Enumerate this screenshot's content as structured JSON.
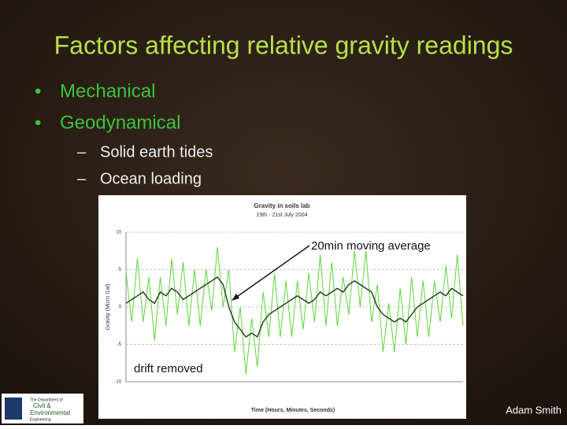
{
  "slide": {
    "title": "Factors affecting relative gravity readings",
    "bullets": [
      "Mechanical",
      "Geodynamical"
    ],
    "subbullets": [
      "Solid earth tides",
      "Ocean loading"
    ],
    "footer": "Adam Smith",
    "logo": [
      "The Department of",
      "Civil &",
      "Environmental",
      "Engineering"
    ]
  },
  "chart_data": {
    "type": "line",
    "title": "Gravity in soils lab",
    "subtitle": "19th - 21st July 2004",
    "y_label": "Gravity (Micro Gal)",
    "x_label": "Time (Hours, Minutes, Seconds)",
    "annotations": [
      "20min moving average",
      "drift removed"
    ],
    "ylim": [
      -10,
      10
    ],
    "yticks": [
      -10,
      -5,
      0,
      5,
      10
    ],
    "grid": true,
    "series": [
      {
        "color": "#5fd43a",
        "values": [
          4.5,
          -2,
          6.5,
          -2,
          4,
          -4.5,
          4,
          -2.5,
          6.5,
          -1,
          6,
          -2.5,
          5,
          -2.5,
          5,
          -0.5,
          8,
          0,
          5,
          -6,
          0,
          -9,
          -1.5,
          -8,
          2,
          -4,
          4.5,
          -4,
          3.5,
          -4,
          3.5,
          -3,
          4.5,
          -2,
          7,
          -2.5,
          6,
          -2.5,
          4,
          -1,
          7.5,
          0,
          7.5,
          -2,
          3,
          -6,
          0.5,
          -6,
          2.5,
          -5,
          4,
          -4,
          3.5,
          -4,
          3.5,
          -2,
          5.5,
          -1.5,
          7,
          -2.5
        ]
      },
      {
        "color": "#1e3a1e",
        "values": [
          0.5,
          1,
          1.5,
          2,
          1,
          0.5,
          2,
          1.5,
          2.5,
          2,
          1,
          1.5,
          2,
          2.5,
          3,
          3.5,
          4,
          3,
          0,
          -2,
          -3,
          -4,
          -3.5,
          -4,
          -2,
          -1,
          -0.5,
          0,
          0.5,
          1,
          1.5,
          1,
          0.5,
          1,
          2,
          1.5,
          2,
          2.5,
          2,
          3,
          3.5,
          3,
          2.5,
          2,
          0,
          -1,
          -1.5,
          -2,
          -1.5,
          -2,
          -1,
          0,
          0.5,
          1,
          1.5,
          2,
          1.5,
          2.5,
          2,
          1.5
        ]
      }
    ]
  }
}
